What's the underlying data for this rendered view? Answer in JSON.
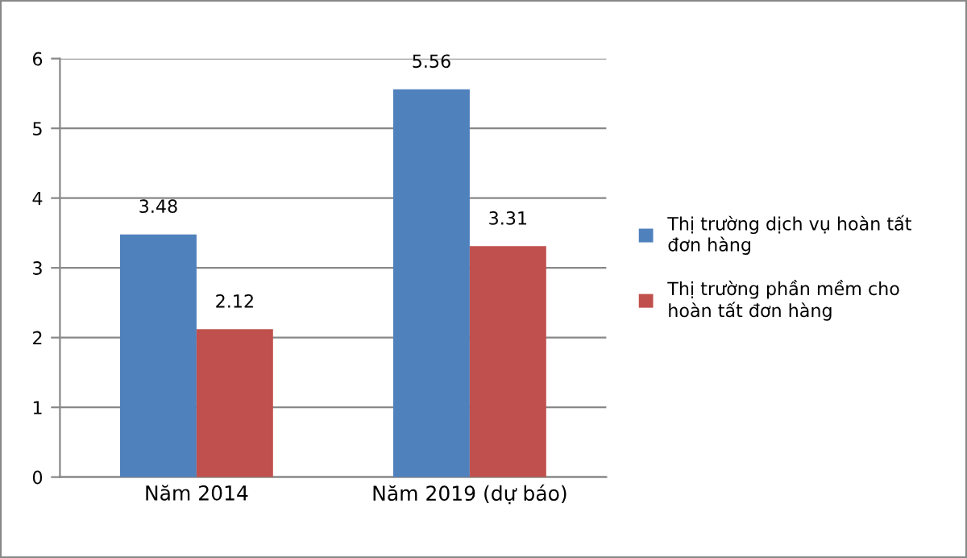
{
  "chart_data": {
    "type": "bar",
    "categories": [
      "Năm 2014",
      "Năm 2019 (dự báo)"
    ],
    "series": [
      {
        "name": "Thị trường dịch vụ hoàn tất đơn hàng",
        "color": "#4f81bd",
        "values": [
          3.48,
          5.56
        ]
      },
      {
        "name": "Thị trường phần mềm cho hoàn tất đơn hàng",
        "color": "#c0504d",
        "values": [
          2.12,
          3.31
        ]
      }
    ],
    "ylim": [
      0,
      6
    ],
    "yticks": [
      0,
      1,
      2,
      3,
      4,
      5,
      6
    ],
    "grid": "y",
    "legend": "right",
    "data_labels": true
  }
}
